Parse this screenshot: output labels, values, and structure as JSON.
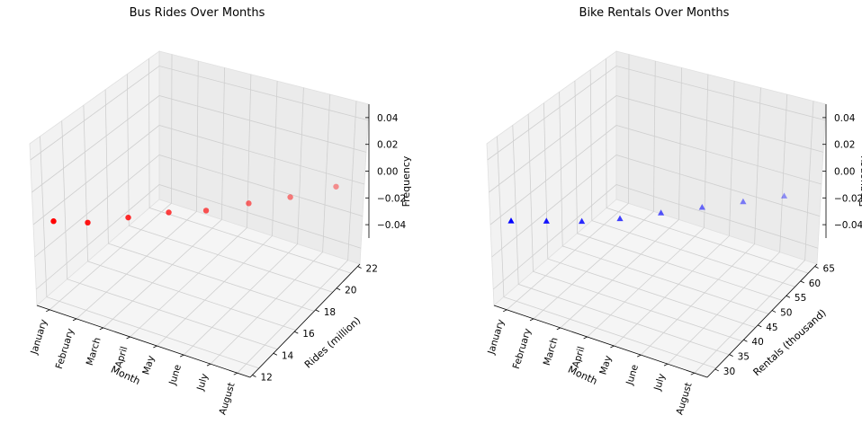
{
  "chart_data": [
    {
      "type": "scatter",
      "title": "Bus Rides Over Months",
      "xlabel": "Month",
      "ylabel": "Rides (million)",
      "zlabel": "Frequency",
      "categories": [
        "January",
        "February",
        "March",
        "April",
        "May",
        "June",
        "July",
        "August"
      ],
      "values": [
        12.5,
        13.2,
        14.5,
        15.8,
        16.8,
        18.3,
        19.7,
        21.5
      ],
      "z": [
        0,
        0,
        0,
        0,
        0,
        0,
        0,
        0
      ],
      "marker": "circle",
      "color": "#ff0000",
      "yticks": [
        12,
        14,
        16,
        18,
        20,
        22
      ],
      "zticks": [
        "0.04",
        "0.02",
        "0.00",
        "−0.02",
        "−0.04"
      ],
      "ylim": [
        12,
        22
      ],
      "zlim": [
        -0.05,
        0.05
      ],
      "grid": true
    },
    {
      "type": "scatter",
      "title": "Bike Rentals Over Months",
      "xlabel": "Month",
      "ylabel": "Rentals (thousand)",
      "zlabel": "Frequency",
      "categories": [
        "January",
        "February",
        "March",
        "April",
        "May",
        "June",
        "July",
        "August"
      ],
      "values": [
        30,
        33,
        36,
        40,
        45,
        50,
        55,
        60
      ],
      "z": [
        0,
        0,
        0,
        0,
        0,
        0,
        0,
        0
      ],
      "marker": "triangle",
      "color": "#0000ff",
      "yticks": [
        30,
        35,
        40,
        45,
        50,
        55,
        60,
        65
      ],
      "zticks": [
        "0.04",
        "0.02",
        "0.00",
        "−0.02",
        "−0.04"
      ],
      "ylim": [
        28,
        65
      ],
      "zlim": [
        -0.05,
        0.05
      ],
      "grid": true
    }
  ]
}
